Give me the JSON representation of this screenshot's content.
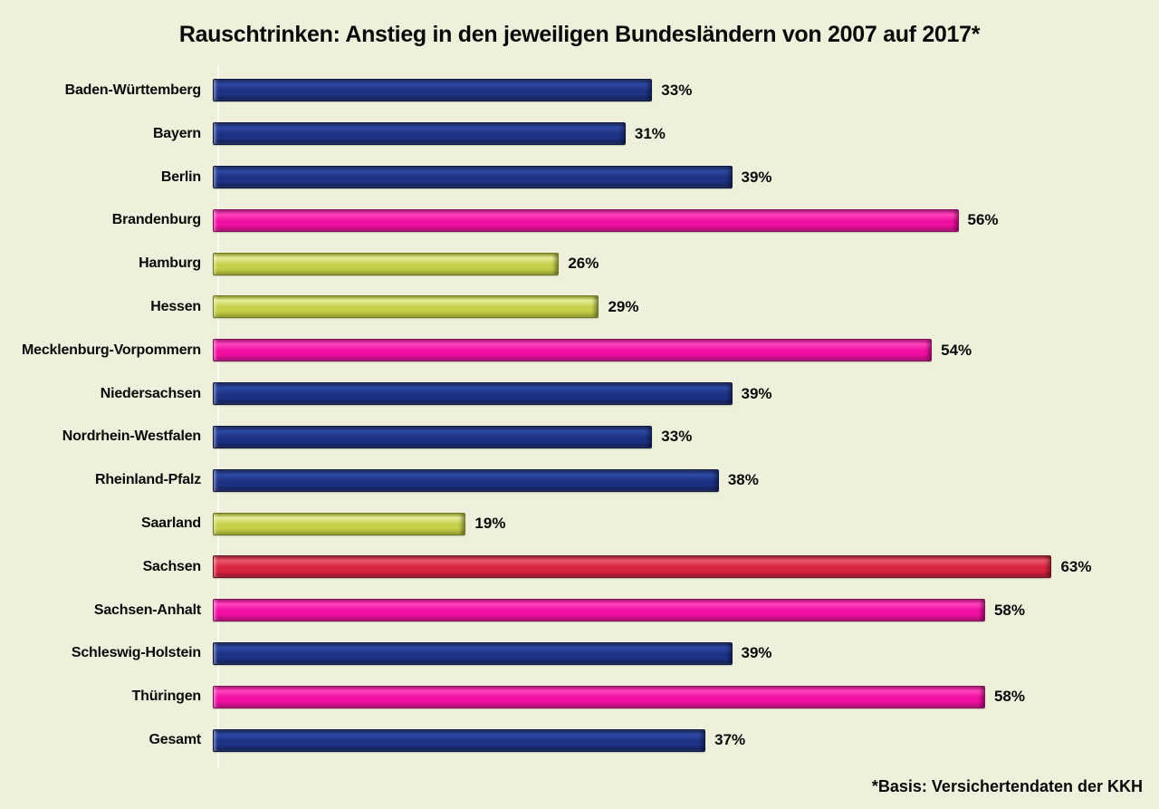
{
  "title": "Rauschtrinken: Anstieg in den jeweiligen Bundesländern von 2007 auf 2017*",
  "footnote": "*Basis: Versichertendaten der KKH",
  "background_color": "#eef0db",
  "axis_line_color": "#fbfcf1",
  "chart_data": {
    "type": "bar",
    "orientation": "horizontal",
    "title": "Rauschtrinken: Anstieg in den jeweiligen Bundesländern von 2007 auf 2017*",
    "xlabel": "",
    "ylabel": "",
    "unit": "%",
    "xlim": [
      0,
      68
    ],
    "grid": false,
    "legend": false,
    "categories": [
      "Baden-Württemberg",
      "Bayern",
      "Berlin",
      "Brandenburg",
      "Hamburg",
      "Hessen",
      "Mecklenburg-Vorpommern",
      "Niedersachsen",
      "Nordrhein-Westfalen",
      "Rheinland-Pfalz",
      "Saarland",
      "Sachsen",
      "Sachsen-Anhalt",
      "Schleswig-Holstein",
      "Thüringen",
      "Gesamt"
    ],
    "values": [
      33,
      31,
      39,
      56,
      26,
      29,
      54,
      39,
      33,
      38,
      19,
      63,
      58,
      39,
      58,
      37
    ],
    "value_labels": [
      "33%",
      "31%",
      "39%",
      "56%",
      "26%",
      "29%",
      "54%",
      "39%",
      "33%",
      "38%",
      "19%",
      "63%",
      "58%",
      "39%",
      "58%",
      "37%"
    ],
    "color_keys": [
      "blue",
      "blue",
      "blue",
      "pink",
      "yellow",
      "yellow",
      "pink",
      "blue",
      "blue",
      "blue",
      "yellow",
      "red",
      "pink",
      "blue",
      "pink",
      "blue"
    ],
    "palette": {
      "blue": {
        "highlight": "#2f4aa4",
        "main": "#1e3285",
        "dark": "#131f58",
        "border": "#0d1743"
      },
      "pink": {
        "highlight": "#ff44bd",
        "main": "#f00fa2",
        "dark": "#b00c77",
        "border": "#8c0a5e"
      },
      "yellow": {
        "highlight": "#e7ec97",
        "main": "#c6d04b",
        "dark": "#98a32c",
        "border": "#6f7a1e"
      },
      "red": {
        "highlight": "#e9596d",
        "main": "#d92440",
        "dark": "#9d142a",
        "border": "#6f0e1d"
      }
    }
  }
}
